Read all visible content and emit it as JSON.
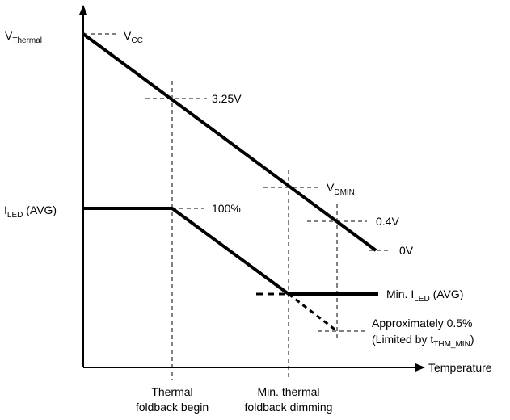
{
  "labels": {
    "v_thermal": {
      "main": "V",
      "sub": "Thermal"
    },
    "i_led_avg_left": {
      "main": "I",
      "sub": "LED",
      "suffix": " (AVG)"
    },
    "vcc": {
      "main": "V",
      "sub": "CC"
    },
    "v_325": "3.25V",
    "vdmin": {
      "main": "V",
      "sub": "DMIN"
    },
    "v_04": "0.4V",
    "v_0": "0V",
    "pct_100": "100%",
    "min_iled": {
      "prefix": "Min. I",
      "sub": "LED",
      "suffix": " (AVG)"
    },
    "approx": "Approximately 0.5%",
    "limited": {
      "prefix": "(Limited by t",
      "sub": "THM_MIN",
      "suffix": ")"
    },
    "x_axis": "Temperature",
    "thermal_begin": [
      "Thermal",
      "foldback begin"
    ],
    "min_thermal": [
      "Min. thermal",
      "foldback dimming"
    ]
  },
  "colors": {
    "line": "#000000",
    "background": "#ffffff"
  }
}
